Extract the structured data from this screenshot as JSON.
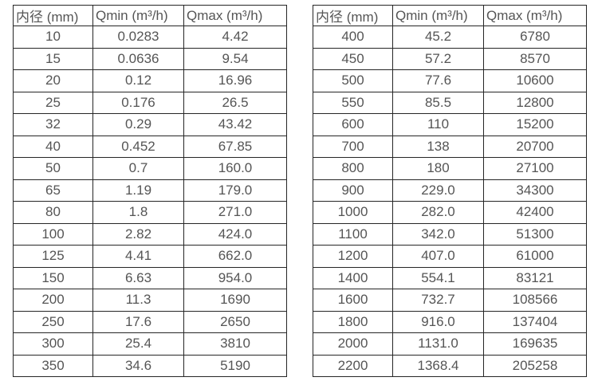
{
  "page": {
    "background_color": "#ffffff",
    "border_color": "#262626",
    "text_color": "#555555"
  },
  "tables": [
    {
      "name": "flow-table-small-diameters",
      "headers": [
        "内径 (mm)",
        "Qmin (m³/h)",
        "Qmax (m³/h)"
      ],
      "rows": [
        [
          "10",
          "0.0283",
          "4.42"
        ],
        [
          "15",
          "0.0636",
          "9.54"
        ],
        [
          "20",
          "0.12",
          "16.96"
        ],
        [
          "25",
          "0.176",
          "26.5"
        ],
        [
          "32",
          "0.29",
          "43.42"
        ],
        [
          "40",
          "0.452",
          "67.85"
        ],
        [
          "50",
          "0.7",
          "160.0"
        ],
        [
          "65",
          "1.19",
          "179.0"
        ],
        [
          "80",
          "1.8",
          "271.0"
        ],
        [
          "100",
          "2.82",
          "424.0"
        ],
        [
          "125",
          "4.41",
          "662.0"
        ],
        [
          "150",
          "6.63",
          "954.0"
        ],
        [
          "200",
          "11.3",
          "1690"
        ],
        [
          "250",
          "17.6",
          "2650"
        ],
        [
          "300",
          "25.4",
          "3810"
        ],
        [
          "350",
          "34.6",
          "5190"
        ]
      ]
    },
    {
      "name": "flow-table-large-diameters",
      "headers": [
        "内径 (mm)",
        "Qmin (m³/h)",
        "Qmax (m³/h)"
      ],
      "rows": [
        [
          "400",
          "45.2",
          "6780"
        ],
        [
          "450",
          "57.2",
          "8570"
        ],
        [
          "500",
          "77.6",
          "10600"
        ],
        [
          "550",
          "85.5",
          "12800"
        ],
        [
          "600",
          "110",
          "15200"
        ],
        [
          "700",
          "138",
          "20700"
        ],
        [
          "800",
          "180",
          "27100"
        ],
        [
          "900",
          "229.0",
          "34300"
        ],
        [
          "1000",
          "282.0",
          "42400"
        ],
        [
          "1100",
          "342.0",
          "51300"
        ],
        [
          "1200",
          "407.0",
          "61000"
        ],
        [
          "1400",
          "554.1",
          "83121"
        ],
        [
          "1600",
          "732.7",
          "108566"
        ],
        [
          "1800",
          "916.0",
          "137404"
        ],
        [
          "2000",
          "1131.0",
          "169635"
        ],
        [
          "2200",
          "1368.4",
          "205258"
        ]
      ]
    }
  ]
}
